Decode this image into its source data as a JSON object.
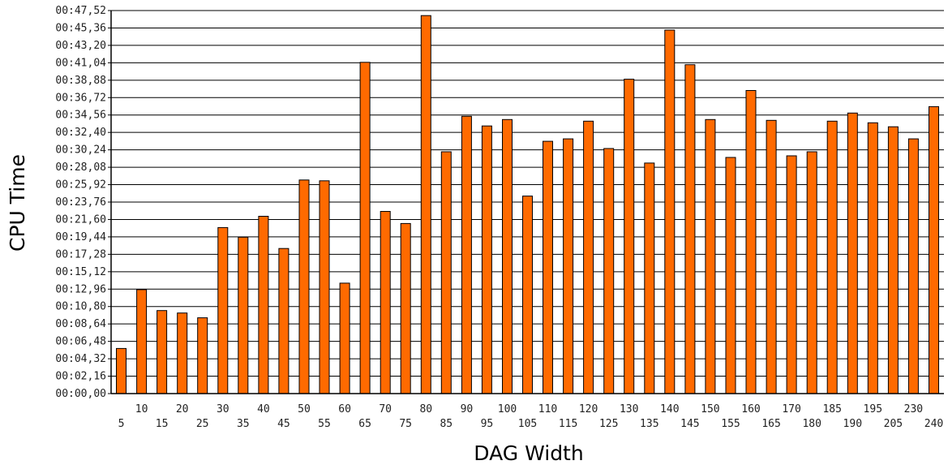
{
  "chart_data": {
    "type": "bar",
    "title": "",
    "xlabel": "DAG Width",
    "ylabel": "CPU Time",
    "y_unit": "seconds (mm:ss,hh)",
    "ylim": [
      0,
      47.52
    ],
    "y_ticks": [
      "00:00,00",
      "00:02,16",
      "00:04,32",
      "00:06,48",
      "00:08,64",
      "00:10,80",
      "00:12,96",
      "00:15,12",
      "00:17,28",
      "00:19,44",
      "00:21,60",
      "00:23,76",
      "00:25,92",
      "00:28,08",
      "00:30,24",
      "00:32,40",
      "00:34,56",
      "00:36,72",
      "00:38,88",
      "00:41,04",
      "00:43,20",
      "00:45,36",
      "00:47,52"
    ],
    "grid": true,
    "bar_color": "#ff6a00",
    "categories": [
      "5",
      "10",
      "15",
      "20",
      "25",
      "30",
      "35",
      "40",
      "45",
      "50",
      "55",
      "60",
      "65",
      "70",
      "75",
      "80",
      "85",
      "90",
      "95",
      "100",
      "105",
      "110",
      "115",
      "120",
      "125",
      "130",
      "135",
      "140",
      "145",
      "150",
      "155",
      "160",
      "165",
      "170",
      "180",
      "185",
      "190",
      "195",
      "205",
      "230",
      "240"
    ],
    "values": [
      5.6,
      12.9,
      10.3,
      10.0,
      9.4,
      20.6,
      19.4,
      22.0,
      18.0,
      26.5,
      26.4,
      13.7,
      41.1,
      22.6,
      21.1,
      46.9,
      30.0,
      34.4,
      33.2,
      34.0,
      24.5,
      31.3,
      31.6,
      33.8,
      30.4,
      39.0,
      28.6,
      45.1,
      40.8,
      34.0,
      29.3,
      37.6,
      33.9,
      29.5,
      30.0,
      33.8,
      34.8,
      33.6,
      33.1,
      31.6,
      35.6
    ]
  }
}
